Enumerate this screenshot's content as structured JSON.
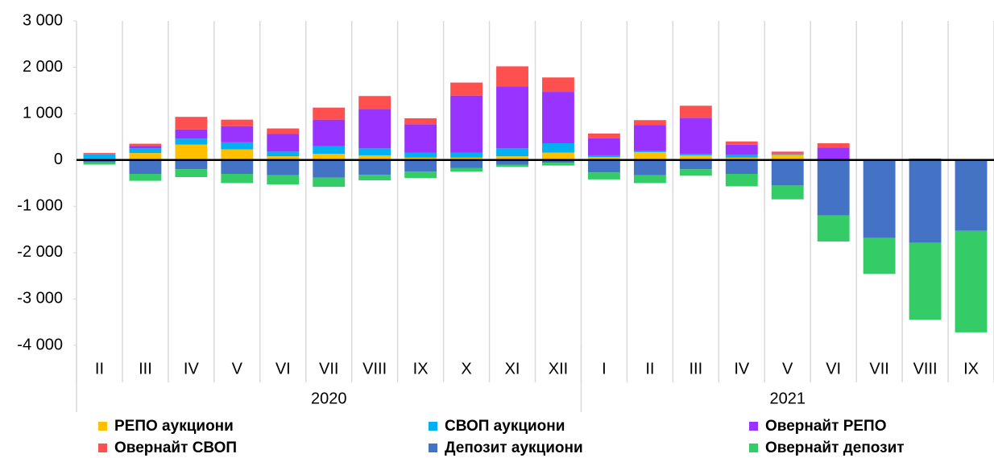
{
  "chart_data": {
    "type": "stacked_bar",
    "groups": [
      {
        "label": "2020",
        "categories": [
          "II",
          "III",
          "IV",
          "V",
          "VI",
          "VII",
          "VIII",
          "IX",
          "X",
          "XI",
          "XII"
        ]
      },
      {
        "label": "2021",
        "categories": [
          "I",
          "II",
          "III",
          "IV",
          "V",
          "VI",
          "VII",
          "VIII",
          "IX"
        ]
      }
    ],
    "series": [
      {
        "name": "РЕПО аукциони",
        "color": "#ffc000",
        "values": [
          0,
          150,
          330,
          230,
          80,
          130,
          100,
          50,
          50,
          80,
          160,
          60,
          170,
          100,
          50,
          110,
          0,
          0,
          0,
          0
        ]
      },
      {
        "name": "СВОП аукциони",
        "color": "#00b0f0",
        "values": [
          120,
          100,
          130,
          150,
          100,
          170,
          150,
          110,
          110,
          170,
          200,
          40,
          20,
          30,
          60,
          20,
          0,
          0,
          0,
          0
        ]
      },
      {
        "name": "Овернайт РЕПО",
        "color": "#9933ff",
        "values": [
          0,
          50,
          200,
          350,
          380,
          570,
          850,
          610,
          1230,
          1340,
          1110,
          370,
          560,
          780,
          220,
          10,
          270,
          0,
          30,
          0
        ]
      },
      {
        "name": "Овернайт СВОП",
        "color": "#ff5050",
        "values": [
          30,
          50,
          270,
          140,
          120,
          260,
          280,
          130,
          280,
          430,
          310,
          100,
          110,
          260,
          70,
          40,
          90,
          0,
          0,
          0
        ]
      },
      {
        "name": "Депозит аукциони",
        "color": "#4472c4",
        "values": [
          -50,
          -300,
          -200,
          -300,
          -330,
          -380,
          -320,
          -250,
          -170,
          -100,
          -60,
          -270,
          -330,
          -200,
          -300,
          -550,
          -1200,
          -1680,
          -1790,
          -1530
        ]
      },
      {
        "name": "Овернайт депозит",
        "color": "#33cc66",
        "values": [
          -50,
          -150,
          -170,
          -200,
          -200,
          -200,
          -120,
          -140,
          -80,
          -50,
          -60,
          -150,
          -170,
          -140,
          -270,
          -300,
          -560,
          -780,
          -1660,
          -2190
        ]
      }
    ],
    "ylim": [
      -4000,
      3000
    ],
    "yticks": [
      {
        "value": 3000,
        "label": "3 000"
      },
      {
        "value": 2000,
        "label": "2 000"
      },
      {
        "value": 1000,
        "label": "1 000"
      },
      0,
      {
        "value": -1000,
        "label": "-1 000"
      },
      {
        "value": -2000,
        "label": "-2 000"
      },
      {
        "value": -3000,
        "label": "-3 000"
      },
      {
        "value": -4000,
        "label": "-4 000"
      }
    ],
    "grid": true,
    "legend": "bottom"
  }
}
